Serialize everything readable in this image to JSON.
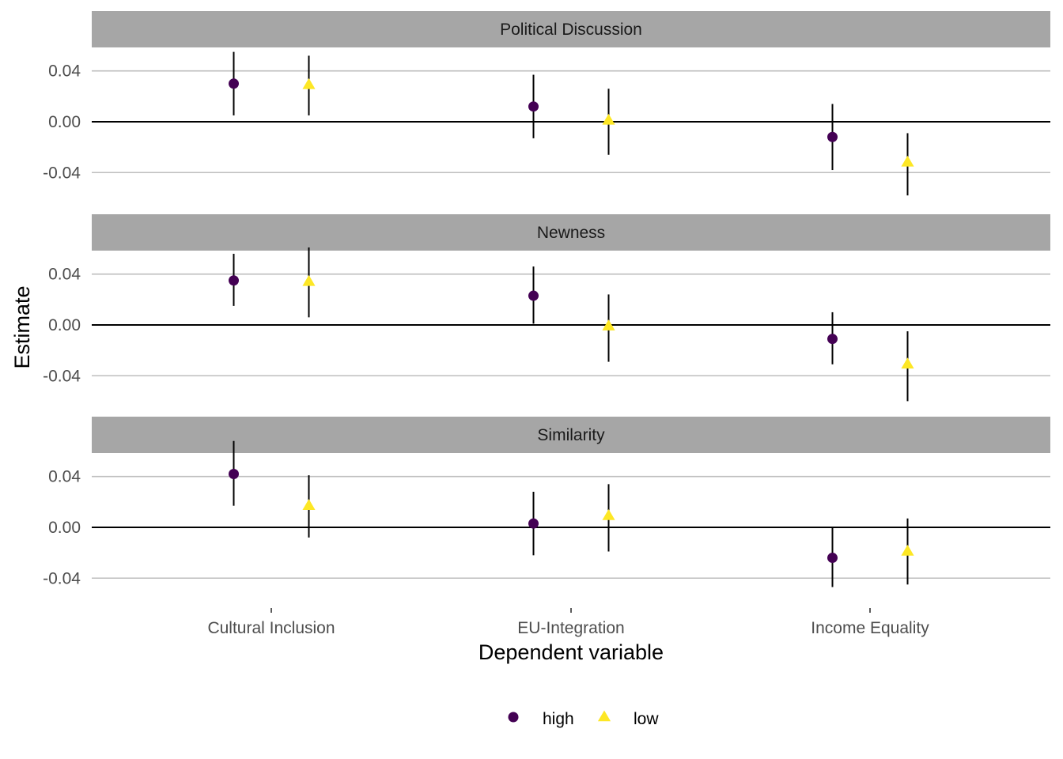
{
  "chart_data": {
    "type": "scatter",
    "xlabel": "Dependent variable",
    "ylabel": "Estimate",
    "categories": [
      "Cultural Inclusion",
      "EU-Integration",
      "Income Equality"
    ],
    "yticks": [
      "0.04",
      "0.00",
      "-0.04"
    ],
    "ytick_values": [
      0.04,
      0.0,
      -0.04
    ],
    "ylim": [
      -0.061,
      0.0585
    ],
    "hline": 0,
    "grid": "horizontal",
    "legend_position": "bottom",
    "panels": [
      {
        "title": "Political Discussion",
        "series": [
          {
            "name": "high",
            "values": [
              0.03,
              0.012,
              -0.012
            ],
            "lower": [
              0.005,
              -0.013,
              -0.038
            ],
            "upper": [
              0.055,
              0.037,
              0.014
            ]
          },
          {
            "name": "low",
            "values": [
              0.029,
              0.001,
              -0.032
            ],
            "lower": [
              0.005,
              -0.026,
              -0.058
            ],
            "upper": [
              0.052,
              0.026,
              -0.009
            ]
          }
        ]
      },
      {
        "title": "Newness",
        "series": [
          {
            "name": "high",
            "values": [
              0.035,
              0.023,
              -0.011
            ],
            "lower": [
              0.015,
              0.001,
              -0.031
            ],
            "upper": [
              0.056,
              0.046,
              0.01
            ]
          },
          {
            "name": "low",
            "values": [
              0.034,
              -0.001,
              -0.031
            ],
            "lower": [
              0.006,
              -0.029,
              -0.06
            ],
            "upper": [
              0.061,
              0.024,
              -0.005
            ]
          }
        ]
      },
      {
        "title": "Similarity",
        "series": [
          {
            "name": "high",
            "values": [
              0.042,
              0.003,
              -0.024
            ],
            "lower": [
              0.017,
              -0.022,
              -0.047
            ],
            "upper": [
              0.068,
              0.028,
              0.0
            ]
          },
          {
            "name": "low",
            "values": [
              0.017,
              0.009,
              -0.019
            ],
            "lower": [
              -0.008,
              -0.019,
              -0.045
            ],
            "upper": [
              0.041,
              0.034,
              0.007
            ]
          }
        ]
      }
    ],
    "legend": [
      {
        "name": "high",
        "shape": "circle"
      },
      {
        "name": "low",
        "shape": "triangle"
      }
    ]
  },
  "colors": {
    "high": "#440154",
    "low": "#FDE725",
    "strip": "#a6a6a6",
    "grid": "#bebebe",
    "zero_line": "#000000"
  }
}
